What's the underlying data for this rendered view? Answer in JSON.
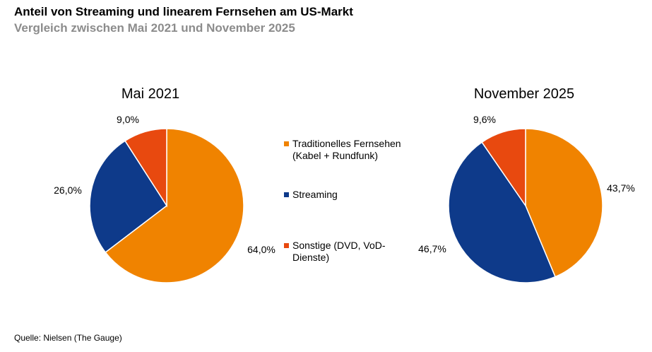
{
  "header": {
    "title": "Anteil von Streaming und linearem Fernsehen am US-Markt",
    "subtitle": "Vergleich zwischen Mai 2021 und November 2025"
  },
  "footer": {
    "source": "Quelle: Nielsen (The Gauge)"
  },
  "colors": {
    "traditional": "#f08300",
    "streaming": "#0e3a8a",
    "other": "#e8490f"
  },
  "legend": [
    {
      "label": "Traditionelles Fernsehen (Kabel + Rundfunk)",
      "color": "#f08300"
    },
    {
      "label": "Streaming",
      "color": "#0e3a8a"
    },
    {
      "label": "Sonstige (DVD, VoD-Dienste)",
      "color": "#e8490f"
    }
  ],
  "chart_data": [
    {
      "type": "pie",
      "title": "Mai 2021",
      "categories": [
        "Traditionelles Fernsehen (Kabel + Rundfunk)",
        "Streaming",
        "Sonstige (DVD, VoD-Dienste)"
      ],
      "values": [
        64.0,
        26.0,
        9.0
      ],
      "labels": [
        "64,0%",
        "26,0%",
        "9,0%"
      ]
    },
    {
      "type": "pie",
      "title": "November 2025",
      "categories": [
        "Traditionelles Fernsehen (Kabel + Rundfunk)",
        "Streaming",
        "Sonstige (DVD, VoD-Dienste)"
      ],
      "values": [
        43.7,
        46.7,
        9.6
      ],
      "labels": [
        "43,7%",
        "46,7%",
        "9,6%"
      ]
    }
  ]
}
